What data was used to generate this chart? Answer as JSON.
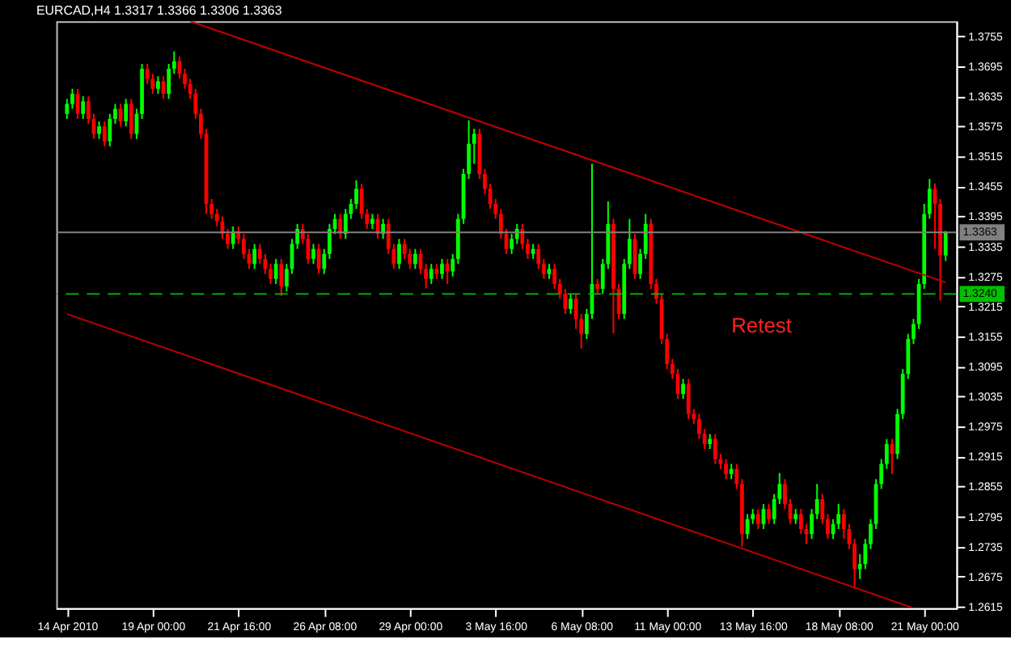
{
  "chart_data": {
    "type": "candlestick",
    "title": "EURCAD,H4 1.3317 1.3366 1.3306 1.3363",
    "categories": [
      "14 Apr 2010",
      null,
      null,
      null,
      null,
      null,
      null,
      null,
      null,
      null,
      null,
      null,
      null,
      null,
      null,
      null,
      "19 Apr 00:00",
      null,
      null,
      null,
      null,
      null,
      null,
      null,
      null,
      null,
      null,
      null,
      null,
      null,
      null,
      null,
      "21 Apr 16:00",
      null,
      null,
      null,
      null,
      null,
      null,
      null,
      null,
      null,
      null,
      null,
      null,
      null,
      null,
      null,
      "26 Apr 08:00",
      null,
      null,
      null,
      null,
      null,
      null,
      null,
      null,
      null,
      null,
      null,
      null,
      null,
      null,
      null,
      "29 Apr 00:00",
      null,
      null,
      null,
      null,
      null,
      null,
      null,
      null,
      null,
      null,
      null,
      null,
      null,
      null,
      null,
      "3 May 16:00",
      null,
      null,
      null,
      null,
      null,
      null,
      null,
      null,
      null,
      null,
      null,
      null,
      null,
      null,
      null,
      "6 May 08:00",
      null,
      null,
      null,
      null,
      null,
      null,
      null,
      null,
      null,
      null,
      null,
      null,
      null,
      null,
      null,
      "11 May 00:00",
      null,
      null,
      null,
      null,
      null,
      null,
      null,
      null,
      null,
      null,
      null,
      null,
      null,
      null,
      null,
      "13 May 16:00",
      null,
      null,
      null,
      null,
      null,
      null,
      null,
      null,
      null,
      null,
      null,
      null,
      null,
      null,
      null,
      "18 May 08:00",
      null,
      null,
      null,
      null,
      null,
      null,
      null,
      null,
      null,
      null,
      null,
      null,
      null,
      null,
      null,
      "21 May 00:00",
      null,
      null,
      null,
      null
    ],
    "ohlc": [
      [
        1.36,
        1.363,
        1.359,
        1.362
      ],
      [
        1.362,
        1.365,
        1.361,
        1.364
      ],
      [
        1.364,
        1.365,
        1.359,
        1.36
      ],
      [
        1.36,
        1.3635,
        1.359,
        1.3625
      ],
      [
        1.3625,
        1.3635,
        1.358,
        1.359
      ],
      [
        1.359,
        1.36,
        1.355,
        1.356
      ],
      [
        1.356,
        1.3585,
        1.355,
        1.3575
      ],
      [
        1.3575,
        1.3585,
        1.3535,
        1.3545
      ],
      [
        1.3545,
        1.36,
        1.3535,
        1.359
      ],
      [
        1.359,
        1.362,
        1.358,
        1.361
      ],
      [
        1.361,
        1.362,
        1.3575,
        1.3585
      ],
      [
        1.3585,
        1.363,
        1.3575,
        1.362
      ],
      [
        1.362,
        1.363,
        1.355,
        1.356
      ],
      [
        1.356,
        1.361,
        1.355,
        1.36
      ],
      [
        1.36,
        1.37,
        1.359,
        1.369
      ],
      [
        1.369,
        1.37,
        1.366,
        1.367
      ],
      [
        1.367,
        1.368,
        1.364,
        1.365
      ],
      [
        1.365,
        1.3675,
        1.364,
        1.3665
      ],
      [
        1.3665,
        1.3675,
        1.363,
        1.364
      ],
      [
        1.364,
        1.37,
        1.363,
        1.369
      ],
      [
        1.369,
        1.3725,
        1.368,
        1.3705
      ],
      [
        1.3705,
        1.3715,
        1.367,
        1.368
      ],
      [
        1.368,
        1.369,
        1.365,
        1.366
      ],
      [
        1.366,
        1.367,
        1.363,
        1.364
      ],
      [
        1.364,
        1.365,
        1.359,
        1.36
      ],
      [
        1.36,
        1.361,
        1.355,
        1.356
      ],
      [
        1.356,
        1.357,
        1.34,
        1.342
      ],
      [
        1.342,
        1.343,
        1.339,
        1.34
      ],
      [
        1.34,
        1.341,
        1.3375,
        1.3385
      ],
      [
        1.3385,
        1.3395,
        1.335,
        1.336
      ],
      [
        1.336,
        1.337,
        1.333,
        1.334
      ],
      [
        1.334,
        1.3375,
        1.333,
        1.3365
      ],
      [
        1.3365,
        1.3375,
        1.334,
        1.335
      ],
      [
        1.335,
        1.336,
        1.331,
        1.332
      ],
      [
        1.332,
        1.333,
        1.329,
        1.33
      ],
      [
        1.33,
        1.334,
        1.329,
        1.333
      ],
      [
        1.333,
        1.334,
        1.33,
        1.331
      ],
      [
        1.331,
        1.332,
        1.328,
        1.329
      ],
      [
        1.329,
        1.33,
        1.326,
        1.327
      ],
      [
        1.327,
        1.331,
        1.326,
        1.33
      ],
      [
        1.33,
        1.331,
        1.3236,
        1.3255
      ],
      [
        1.3255,
        1.33,
        1.3245,
        1.329
      ],
      [
        1.329,
        1.335,
        1.328,
        1.334
      ],
      [
        1.334,
        1.338,
        1.333,
        1.337
      ],
      [
        1.337,
        1.338,
        1.334,
        1.335
      ],
      [
        1.335,
        1.336,
        1.33,
        1.331
      ],
      [
        1.331,
        1.334,
        1.33,
        1.333
      ],
      [
        1.333,
        1.334,
        1.328,
        1.329
      ],
      [
        1.329,
        1.333,
        1.328,
        1.332
      ],
      [
        1.332,
        1.338,
        1.331,
        1.337
      ],
      [
        1.337,
        1.34,
        1.336,
        1.339
      ],
      [
        1.339,
        1.34,
        1.335,
        1.336
      ],
      [
        1.336,
        1.341,
        1.335,
        1.34
      ],
      [
        1.34,
        1.343,
        1.339,
        1.342
      ],
      [
        1.342,
        1.3467,
        1.341,
        1.345
      ],
      [
        1.345,
        1.346,
        1.339,
        1.34
      ],
      [
        1.34,
        1.341,
        1.337,
        1.338
      ],
      [
        1.338,
        1.34,
        1.337,
        1.339
      ],
      [
        1.339,
        1.34,
        1.335,
        1.336
      ],
      [
        1.336,
        1.339,
        1.335,
        1.338
      ],
      [
        1.338,
        1.339,
        1.332,
        1.333
      ],
      [
        1.333,
        1.334,
        1.329,
        1.33
      ],
      [
        1.33,
        1.335,
        1.329,
        1.334
      ],
      [
        1.334,
        1.335,
        1.331,
        1.332
      ],
      [
        1.332,
        1.333,
        1.329,
        1.33
      ],
      [
        1.33,
        1.333,
        1.329,
        1.332
      ],
      [
        1.332,
        1.333,
        1.328,
        1.329
      ],
      [
        1.329,
        1.33,
        1.3251,
        1.327
      ],
      [
        1.327,
        1.33,
        1.326,
        1.329
      ],
      [
        1.329,
        1.33,
        1.327,
        1.328
      ],
      [
        1.328,
        1.331,
        1.327,
        1.33
      ],
      [
        1.33,
        1.331,
        1.326,
        1.3285
      ],
      [
        1.3285,
        1.332,
        1.3275,
        1.331
      ],
      [
        1.331,
        1.34,
        1.33,
        1.339
      ],
      [
        1.339,
        1.349,
        1.338,
        1.348
      ],
      [
        1.348,
        1.3587,
        1.347,
        1.354
      ],
      [
        1.354,
        1.357,
        1.35,
        1.356
      ],
      [
        1.356,
        1.357,
        1.347,
        1.348
      ],
      [
        1.348,
        1.349,
        1.344,
        1.345
      ],
      [
        1.345,
        1.346,
        1.341,
        1.342
      ],
      [
        1.342,
        1.343,
        1.339,
        1.34
      ],
      [
        1.34,
        1.341,
        1.335,
        1.336
      ],
      [
        1.336,
        1.337,
        1.332,
        1.333
      ],
      [
        1.333,
        1.336,
        1.332,
        1.335
      ],
      [
        1.335,
        1.338,
        1.334,
        1.337
      ],
      [
        1.337,
        1.338,
        1.333,
        1.334
      ],
      [
        1.334,
        1.335,
        1.331,
        1.332
      ],
      [
        1.332,
        1.334,
        1.331,
        1.333
      ],
      [
        1.333,
        1.334,
        1.329,
        1.33
      ],
      [
        1.33,
        1.331,
        1.327,
        1.328
      ],
      [
        1.328,
        1.33,
        1.327,
        1.329
      ],
      [
        1.329,
        1.33,
        1.325,
        1.326
      ],
      [
        1.326,
        1.327,
        1.323,
        1.324
      ],
      [
        1.324,
        1.325,
        1.32,
        1.321
      ],
      [
        1.321,
        1.324,
        1.32,
        1.323
      ],
      [
        1.323,
        1.324,
        1.317,
        1.319
      ],
      [
        1.319,
        1.32,
        1.3131,
        1.316
      ],
      [
        1.316,
        1.321,
        1.315,
        1.32
      ],
      [
        1.32,
        1.35,
        1.319,
        1.326
      ],
      [
        1.326,
        1.327,
        1.324,
        1.325
      ],
      [
        1.325,
        1.331,
        1.324,
        1.33
      ],
      [
        1.33,
        1.3425,
        1.329,
        1.338
      ],
      [
        1.338,
        1.339,
        1.3161,
        1.325
      ],
      [
        1.325,
        1.326,
        1.319,
        1.32
      ],
      [
        1.32,
        1.331,
        1.319,
        1.33
      ],
      [
        1.33,
        1.339,
        1.329,
        1.335
      ],
      [
        1.335,
        1.336,
        1.327,
        1.328
      ],
      [
        1.328,
        1.333,
        1.327,
        1.332
      ],
      [
        1.332,
        1.34,
        1.331,
        1.338
      ],
      [
        1.338,
        1.339,
        1.325,
        1.326
      ],
      [
        1.326,
        1.327,
        1.322,
        1.323
      ],
      [
        1.323,
        1.324,
        1.314,
        1.315
      ],
      [
        1.315,
        1.316,
        1.309,
        1.31
      ],
      [
        1.31,
        1.311,
        1.307,
        1.308
      ],
      [
        1.308,
        1.309,
        1.303,
        1.304
      ],
      [
        1.304,
        1.307,
        1.303,
        1.306
      ],
      [
        1.306,
        1.307,
        1.299,
        1.3
      ],
      [
        1.3,
        1.301,
        1.298,
        1.299
      ],
      [
        1.299,
        1.3,
        1.295,
        1.296
      ],
      [
        1.296,
        1.297,
        1.293,
        1.294
      ],
      [
        1.294,
        1.296,
        1.293,
        1.295
      ],
      [
        1.295,
        1.296,
        1.29,
        1.291
      ],
      [
        1.291,
        1.292,
        1.289,
        1.29
      ],
      [
        1.29,
        1.291,
        1.287,
        1.288
      ],
      [
        1.288,
        1.29,
        1.287,
        1.289
      ],
      [
        1.289,
        1.29,
        1.285,
        1.286
      ],
      [
        1.286,
        1.287,
        1.2735,
        1.276
      ],
      [
        1.276,
        1.28,
        1.275,
        1.279
      ],
      [
        1.279,
        1.281,
        1.278,
        1.28
      ],
      [
        1.28,
        1.281,
        1.277,
        1.278
      ],
      [
        1.278,
        1.282,
        1.277,
        1.281
      ],
      [
        1.281,
        1.282,
        1.278,
        1.279
      ],
      [
        1.279,
        1.284,
        1.278,
        1.283
      ],
      [
        1.283,
        1.2882,
        1.282,
        1.286
      ],
      [
        1.286,
        1.287,
        1.281,
        1.282
      ],
      [
        1.282,
        1.283,
        1.278,
        1.279
      ],
      [
        1.279,
        1.281,
        1.278,
        1.28
      ],
      [
        1.28,
        1.281,
        1.276,
        1.277
      ],
      [
        1.277,
        1.278,
        1.274,
        1.276
      ],
      [
        1.276,
        1.281,
        1.275,
        1.28
      ],
      [
        1.28,
        1.286,
        1.279,
        1.283
      ],
      [
        1.283,
        1.284,
        1.278,
        1.279
      ],
      [
        1.279,
        1.28,
        1.275,
        1.276
      ],
      [
        1.276,
        1.279,
        1.275,
        1.278
      ],
      [
        1.278,
        1.282,
        1.277,
        1.28
      ],
      [
        1.28,
        1.281,
        1.275,
        1.277
      ],
      [
        1.277,
        1.278,
        1.273,
        1.274
      ],
      [
        1.274,
        1.275,
        1.2651,
        1.269
      ],
      [
        1.269,
        1.272,
        1.267,
        1.27
      ],
      [
        1.27,
        1.275,
        1.269,
        1.274
      ],
      [
        1.274,
        1.279,
        1.273,
        1.278
      ],
      [
        1.278,
        1.287,
        1.277,
        1.286
      ],
      [
        1.286,
        1.291,
        1.285,
        1.29
      ],
      [
        1.29,
        1.295,
        1.289,
        1.294
      ],
      [
        1.294,
        1.295,
        1.288,
        1.292
      ],
      [
        1.292,
        1.301,
        1.291,
        1.3
      ],
      [
        1.3,
        1.309,
        1.299,
        1.308
      ],
      [
        1.308,
        1.316,
        1.307,
        1.315
      ],
      [
        1.315,
        1.319,
        1.314,
        1.318
      ],
      [
        1.318,
        1.327,
        1.317,
        1.326
      ],
      [
        1.326,
        1.342,
        1.325,
        1.34
      ],
      [
        1.34,
        1.347,
        1.339,
        1.345
      ],
      [
        1.345,
        1.3461,
        1.333,
        1.342
      ],
      [
        1.342,
        1.343,
        1.3227,
        1.3317
      ],
      [
        1.3317,
        1.3366,
        1.3306,
        1.3363
      ]
    ],
    "colors": [
      "#00ff00",
      "#00ff00",
      "#ff0000",
      "#00ff00",
      "#ff0000",
      "#ff0000",
      "#00ff00",
      "#ff0000",
      "#00ff00",
      "#00ff00",
      "#ff0000",
      "#00ff00",
      "#ff0000",
      "#00ff00",
      "#00ff00",
      "#ff0000",
      "#ff0000",
      "#00ff00",
      "#ff0000",
      "#00ff00",
      "#00ff00",
      "#ff0000",
      "#ff0000",
      "#ff0000",
      "#ff0000",
      "#ff0000",
      "#ff0000",
      "#ff0000",
      "#ff0000",
      "#ff0000",
      "#ff0000",
      "#00ff00",
      "#ff0000",
      "#ff0000",
      "#ff0000",
      "#00ff00",
      "#ff0000",
      "#ff0000",
      "#ff0000",
      "#00ff00",
      "#ff0000",
      "#00ff00",
      "#00ff00",
      "#00ff00",
      "#ff0000",
      "#ff0000",
      "#00ff00",
      "#ff0000",
      "#00ff00",
      "#00ff00",
      "#00ff00",
      "#ff0000",
      "#00ff00",
      "#00ff00",
      "#00ff00",
      "#ff0000",
      "#ff0000",
      "#00ff00",
      "#ff0000",
      "#00ff00",
      "#ff0000",
      "#ff0000",
      "#00ff00",
      "#ff0000",
      "#ff0000",
      "#00ff00",
      "#ff0000",
      "#ff0000",
      "#00ff00",
      "#ff0000",
      "#00ff00",
      "#ff0000",
      "#00ff00",
      "#00ff00",
      "#00ff00",
      "#00ff00",
      "#00ff00",
      "#ff0000",
      "#ff0000",
      "#ff0000",
      "#ff0000",
      "#ff0000",
      "#ff0000",
      "#00ff00",
      "#00ff00",
      "#ff0000",
      "#ff0000",
      "#00ff00",
      "#ff0000",
      "#ff0000",
      "#00ff00",
      "#ff0000",
      "#ff0000",
      "#ff0000",
      "#00ff00",
      "#ff0000",
      "#ff0000",
      "#00ff00",
      "#00ff00",
      "#ff0000",
      "#00ff00",
      "#00ff00",
      "#ff0000",
      "#ff0000",
      "#00ff00",
      "#00ff00",
      "#ff0000",
      "#00ff00",
      "#00ff00",
      "#ff0000",
      "#ff0000",
      "#ff0000",
      "#ff0000",
      "#ff0000",
      "#ff0000",
      "#00ff00",
      "#ff0000",
      "#ff0000",
      "#ff0000",
      "#ff0000",
      "#00ff00",
      "#ff0000",
      "#ff0000",
      "#ff0000",
      "#00ff00",
      "#ff0000",
      "#ff0000",
      "#00ff00",
      "#00ff00",
      "#ff0000",
      "#00ff00",
      "#ff0000",
      "#00ff00",
      "#00ff00",
      "#ff0000",
      "#ff0000",
      "#00ff00",
      "#ff0000",
      "#ff0000",
      "#00ff00",
      "#00ff00",
      "#ff0000",
      "#ff0000",
      "#00ff00",
      "#00ff00",
      "#ff0000",
      "#ff0000",
      "#ff0000",
      "#00ff00",
      "#00ff00",
      "#00ff00",
      "#00ff00",
      "#00ff00",
      "#00ff00",
      "#ff0000",
      "#00ff00",
      "#00ff00",
      "#00ff00",
      "#00ff00",
      "#00ff00",
      "#00ff00",
      "#00ff00",
      "#ff0000",
      "#ff0000",
      "#00ff00"
    ],
    "series": [
      {
        "type": "line",
        "color": "#c00000",
        "values": [
          null,
          null,
          null,
          null,
          null,
          null,
          null,
          null,
          null,
          null,
          null,
          null,
          null,
          null,
          null,
          null,
          null,
          null,
          null,
          null,
          null,
          null,
          null,
          1.3785,
          null,
          null,
          null,
          null,
          null,
          null,
          null,
          null,
          null,
          null,
          null,
          null,
          null,
          null,
          null,
          null,
          null,
          null,
          null,
          null,
          null,
          null,
          null,
          null,
          null,
          null,
          null,
          null,
          null,
          null,
          null,
          null,
          null,
          null,
          null,
          null,
          null,
          null,
          null,
          null,
          null,
          null,
          null,
          null,
          null,
          null,
          null,
          null,
          null,
          null,
          null,
          null,
          null,
          null,
          null,
          null,
          null,
          null,
          null,
          null,
          null,
          null,
          null,
          null,
          null,
          null,
          null,
          null,
          null,
          null,
          null,
          null,
          null,
          null,
          null,
          null,
          null,
          null,
          null,
          null,
          null,
          null,
          null,
          null,
          null,
          null,
          null,
          null,
          null,
          null,
          null,
          null,
          null,
          null,
          null,
          null,
          null,
          null,
          null,
          null,
          null,
          null,
          null,
          null,
          null,
          null,
          null,
          null,
          null,
          null,
          null,
          null,
          null,
          null,
          null,
          null,
          null,
          null,
          null,
          null,
          null,
          null,
          null,
          null,
          null,
          null,
          null,
          null,
          null,
          null,
          null,
          null,
          null,
          null,
          null,
          null,
          null,
          null,
          null,
          null,
          1.3263
        ]
      },
      {
        "type": "line",
        "color": "#c00000",
        "values": [
          1.32,
          null,
          null,
          null,
          null,
          null,
          null,
          null,
          null,
          null,
          null,
          null,
          null,
          null,
          null,
          null,
          null,
          null,
          null,
          null,
          null,
          null,
          null,
          null,
          null,
          null,
          null,
          null,
          null,
          null,
          null,
          null,
          null,
          null,
          null,
          null,
          null,
          null,
          null,
          null,
          null,
          null,
          null,
          null,
          null,
          null,
          null,
          null,
          null,
          null,
          null,
          null,
          null,
          null,
          null,
          null,
          null,
          null,
          null,
          null,
          null,
          null,
          null,
          null,
          null,
          null,
          null,
          null,
          null,
          null,
          null,
          null,
          null,
          null,
          null,
          null,
          null,
          null,
          null,
          null,
          null,
          null,
          null,
          null,
          null,
          null,
          null,
          null,
          null,
          null,
          null,
          null,
          null,
          null,
          null,
          null,
          null,
          null,
          null,
          null,
          null,
          null,
          null,
          null,
          null,
          null,
          null,
          null,
          null,
          null,
          null,
          null,
          null,
          null,
          null,
          null,
          null,
          null,
          null,
          null,
          null,
          null,
          null,
          null,
          null,
          null,
          null,
          null,
          null,
          null,
          null,
          null,
          null,
          null,
          null,
          null,
          null,
          null,
          null,
          null,
          null,
          null,
          null,
          null,
          null,
          null,
          null,
          null,
          null,
          null,
          null,
          null,
          null,
          null,
          null,
          null,
          null,
          null,
          1.2612,
          null,
          null,
          null,
          null,
          null,
          null
        ]
      }
    ],
    "ylim": [
      1.2612,
      1.3785
    ],
    "yticks": [
      1.2615,
      1.2675,
      1.2735,
      1.2795,
      1.2855,
      1.2915,
      1.2975,
      1.3035,
      1.3095,
      1.3155,
      1.3215,
      1.3275,
      1.3335,
      1.3395,
      1.3455,
      1.3515,
      1.3575,
      1.3635,
      1.3695,
      1.3755
    ],
    "ref_lines": [
      {
        "axis": "y",
        "value": 1.3363,
        "label": "1.3363",
        "color": "#808080"
      },
      {
        "axis": "y",
        "value": 1.324,
        "label": "1.3240",
        "color": "#00c000",
        "line_style": "dashed"
      }
    ],
    "annotations": [
      "Retest"
    ]
  }
}
